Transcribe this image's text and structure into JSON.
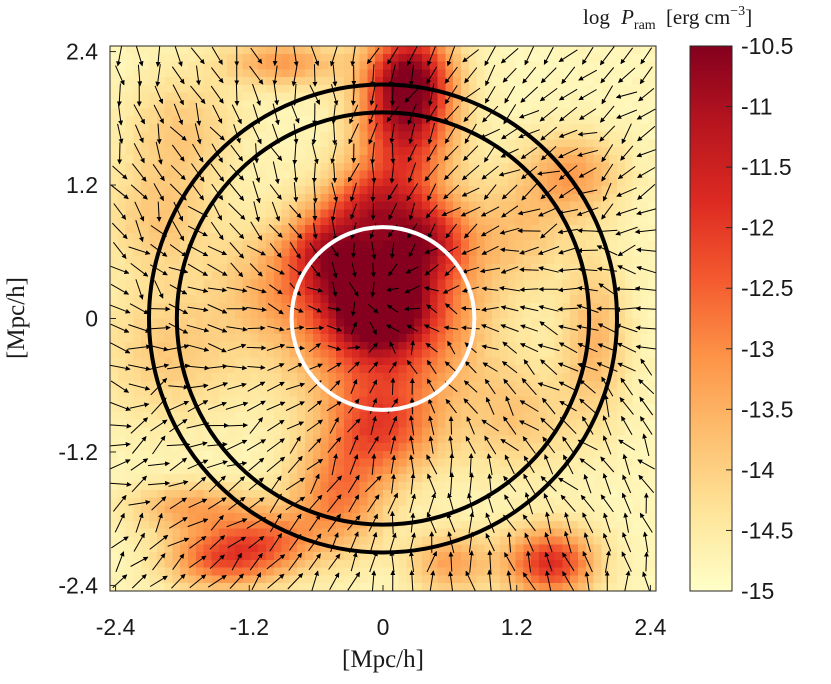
{
  "chart_data": {
    "type": "heatmap",
    "title": "",
    "xlabel": "[Mpc/h]",
    "ylabel": "[Mpc/h]",
    "xlim": [
      -2.45,
      2.45
    ],
    "ylim": [
      -2.45,
      2.45
    ],
    "xticks": [
      "-2.4",
      "-1.2",
      "0",
      "1.2",
      "2.4"
    ],
    "yticks": [
      "2.4",
      "1.2",
      "0",
      "-1.2",
      "-2.4"
    ],
    "xtick_values": [
      -2.4,
      -1.2,
      0,
      1.2,
      2.4
    ],
    "ytick_values": [
      2.4,
      1.2,
      0,
      -1.2,
      -2.4
    ],
    "colorbar": {
      "title_prefix": "log",
      "title_symbol": "P",
      "title_subscript": "ram",
      "title_units": "[erg cm",
      "title_exponent": "−3",
      "title_close": "]",
      "range": [
        -15,
        -10.5
      ],
      "ticks": [
        "-10.5",
        "-11",
        "-11.5",
        "-12",
        "-12.5",
        "-13",
        "-13.5",
        "-14",
        "-14.5",
        "-15"
      ],
      "tick_values": [
        -10.5,
        -11,
        -11.5,
        -12,
        -12.5,
        -13,
        -13.5,
        -14,
        -14.5,
        -15
      ],
      "colormap_stops": [
        "#ffffc8",
        "#fee59a",
        "#fdbf6f",
        "#fd9447",
        "#f45a2f",
        "#dd2a22",
        "#b7151f",
        "#84001e"
      ]
    },
    "density_features": [
      {
        "x": 0.0,
        "y": 0.05,
        "sx": 0.55,
        "sy": 0.55,
        "value": -11.3
      },
      {
        "x": -0.05,
        "y": 0.15,
        "sx": 0.25,
        "sy": 0.25,
        "value": -11.0
      },
      {
        "x": 0.2,
        "y": 1.75,
        "sx": 0.3,
        "sy": 0.45,
        "value": -11.7
      },
      {
        "x": 0.25,
        "y": 2.2,
        "sx": 0.25,
        "sy": 0.3,
        "value": -12.0
      },
      {
        "x": -0.1,
        "y": 1.0,
        "sx": 0.3,
        "sy": 0.25,
        "value": -12.6
      },
      {
        "x": 0.4,
        "y": 0.7,
        "sx": 0.25,
        "sy": 0.25,
        "value": -12.5
      },
      {
        "x": -0.5,
        "y": 0.6,
        "sx": 0.25,
        "sy": 0.25,
        "value": -12.6
      },
      {
        "x": 0.0,
        "y": -1.0,
        "sx": 0.35,
        "sy": 0.3,
        "value": -12.7
      },
      {
        "x": -0.4,
        "y": -1.6,
        "sx": 0.3,
        "sy": 0.35,
        "value": -12.9
      },
      {
        "x": 1.5,
        "y": -2.2,
        "sx": 0.28,
        "sy": 0.22,
        "value": -11.8
      },
      {
        "x": -1.45,
        "y": -2.15,
        "sx": 0.35,
        "sy": 0.2,
        "value": -12.4
      },
      {
        "x": -1.7,
        "y": -1.7,
        "sx": 0.4,
        "sy": 0.15,
        "value": -13.4
      },
      {
        "x": -1.0,
        "y": -2.0,
        "sx": 0.3,
        "sy": 0.2,
        "value": -13.3
      },
      {
        "x": -0.9,
        "y": 2.3,
        "sx": 0.35,
        "sy": 0.15,
        "value": -13.2
      },
      {
        "x": 1.7,
        "y": 1.3,
        "sx": 0.3,
        "sy": 0.25,
        "value": -13.3
      },
      {
        "x": 1.9,
        "y": -0.2,
        "sx": 0.2,
        "sy": 0.5,
        "value": -13.6
      },
      {
        "x": 0.6,
        "y": -2.2,
        "sx": 0.25,
        "sy": 0.2,
        "value": -13.3
      },
      {
        "x": -1.8,
        "y": 1.7,
        "sx": 0.35,
        "sy": 0.35,
        "value": -13.9
      },
      {
        "x": -2.0,
        "y": 0.9,
        "sx": 0.35,
        "sy": 0.35,
        "value": -13.9
      },
      {
        "x": -1.9,
        "y": -0.3,
        "sx": 0.45,
        "sy": 0.45,
        "value": -13.9
      },
      {
        "x": 1.2,
        "y": -0.9,
        "sx": 0.35,
        "sy": 0.35,
        "value": -13.9
      },
      {
        "x": -1.0,
        "y": 0.3,
        "sx": 0.35,
        "sy": 0.35,
        "value": -13.9
      },
      {
        "x": 1.2,
        "y": 0.8,
        "sx": 0.35,
        "sy": 0.35,
        "value": -13.9
      }
    ],
    "circles": [
      {
        "name": "outer-black-circle",
        "cx": 0.0,
        "cy": 0.0,
        "r": 2.1,
        "color": "#000000"
      },
      {
        "name": "middle-black-circle",
        "cx": 0.0,
        "cy": 0.0,
        "r": 1.85,
        "color": "#000000"
      },
      {
        "name": "inner-white-circle",
        "cx": 0.0,
        "cy": 0.0,
        "r": 0.82,
        "color": "#ffffff"
      }
    ],
    "velocity_field": {
      "description": "quiver arrows on a 28x28 grid; outer gas flows inward toward the center",
      "grid_n": 28,
      "color": "#000000"
    },
    "grid": false
  }
}
